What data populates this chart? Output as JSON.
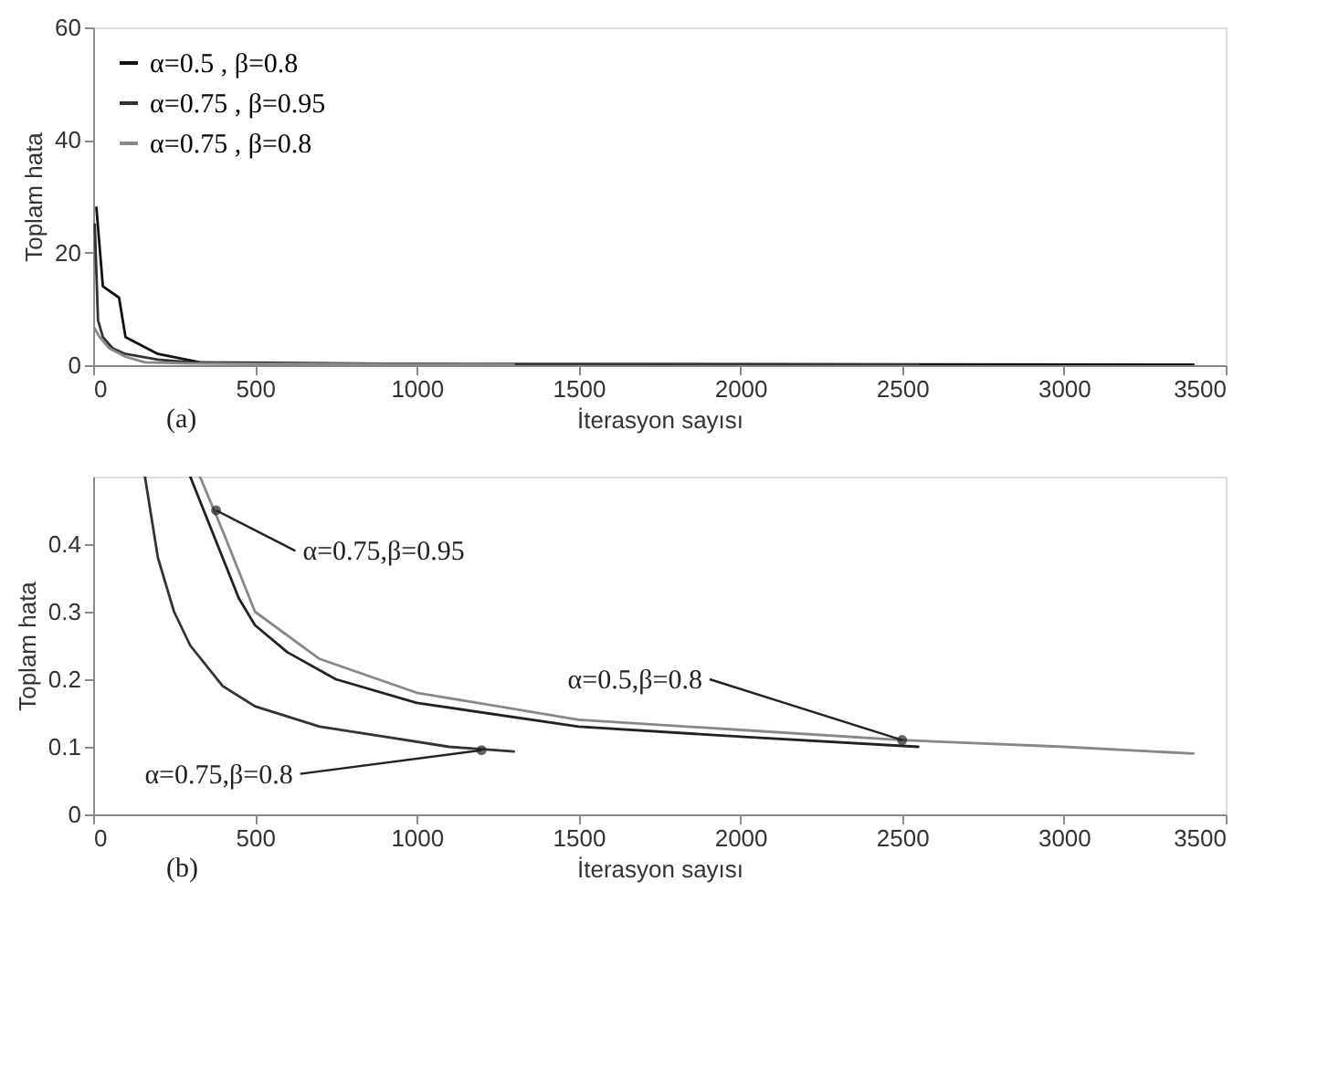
{
  "chart_data": [
    {
      "type": "line",
      "xlabel": "İterasyon sayısı",
      "ylabel": "Toplam hata",
      "xlim": [
        0,
        3500
      ],
      "ylim": [
        0,
        60
      ],
      "xticks": [
        0,
        500,
        1000,
        1500,
        2000,
        2500,
        3000,
        3500
      ],
      "yticks": [
        0,
        20,
        40,
        60
      ],
      "grid": false,
      "legend": "top left",
      "annotations": [
        "(a)"
      ],
      "series": [
        {
          "name": "α=0.5 , β=0.8",
          "color": "#111111",
          "x": [
            10,
            30,
            80,
            100,
            200,
            330,
            1000,
            3400
          ],
          "values": [
            28,
            14,
            12,
            5,
            2,
            0.5,
            0.2,
            0.1
          ]
        },
        {
          "name": "α=0.75 , β=0.95",
          "color": "#333333",
          "x": [
            5,
            15,
            30,
            60,
            100,
            200,
            300,
            500,
            1000,
            2550
          ],
          "values": [
            25,
            8,
            5,
            3,
            2,
            1,
            0.5,
            0.3,
            0.2,
            0.1
          ]
        },
        {
          "name": "α=0.75 , β=0.8",
          "color": "#888888",
          "x": [
            0,
            20,
            50,
            100,
            160,
            300,
            1300
          ],
          "values": [
            7,
            5,
            3,
            1.5,
            0.5,
            0.3,
            0.1
          ]
        }
      ]
    },
    {
      "type": "line",
      "xlabel": "İterasyon sayısı",
      "ylabel": "Toplam hata",
      "xlim": [
        0,
        3500
      ],
      "ylim": [
        0,
        0.5
      ],
      "xticks": [
        0,
        500,
        1000,
        1500,
        2000,
        2500,
        3000,
        3500
      ],
      "yticks": [
        0,
        0.1,
        0.2,
        0.3,
        0.4
      ],
      "grid": false,
      "annotations": [
        "(b)",
        {
          "text": "α=0.75,β=0.95",
          "x": 380,
          "y": 0.45
        },
        {
          "text": "α=0.5,β=0.8",
          "x": 2500,
          "y": 0.11
        },
        {
          "text": "α=0.75,β=0.8",
          "x": 1200,
          "y": 0.095
        }
      ],
      "series": [
        {
          "color": "#888888",
          "x": [
            330,
            400,
            500,
            700,
            1000,
            1500,
            2000,
            2500,
            3000,
            3400
          ],
          "values": [
            0.5,
            0.42,
            0.3,
            0.23,
            0.18,
            0.14,
            0.125,
            0.11,
            0.1,
            0.09
          ]
        },
        {
          "color": "#222222",
          "x": [
            300,
            400,
            450,
            500,
            600,
            750,
            1000,
            1500,
            2000,
            2550
          ],
          "values": [
            0.5,
            0.38,
            0.32,
            0.28,
            0.24,
            0.2,
            0.165,
            0.13,
            0.115,
            0.1
          ]
        },
        {
          "color": "#333333",
          "x": [
            160,
            200,
            250,
            300,
            400,
            500,
            700,
            900,
            1100,
            1300
          ],
          "values": [
            0.5,
            0.38,
            0.3,
            0.25,
            0.19,
            0.16,
            0.13,
            0.115,
            0.1,
            0.093
          ]
        }
      ]
    }
  ]
}
